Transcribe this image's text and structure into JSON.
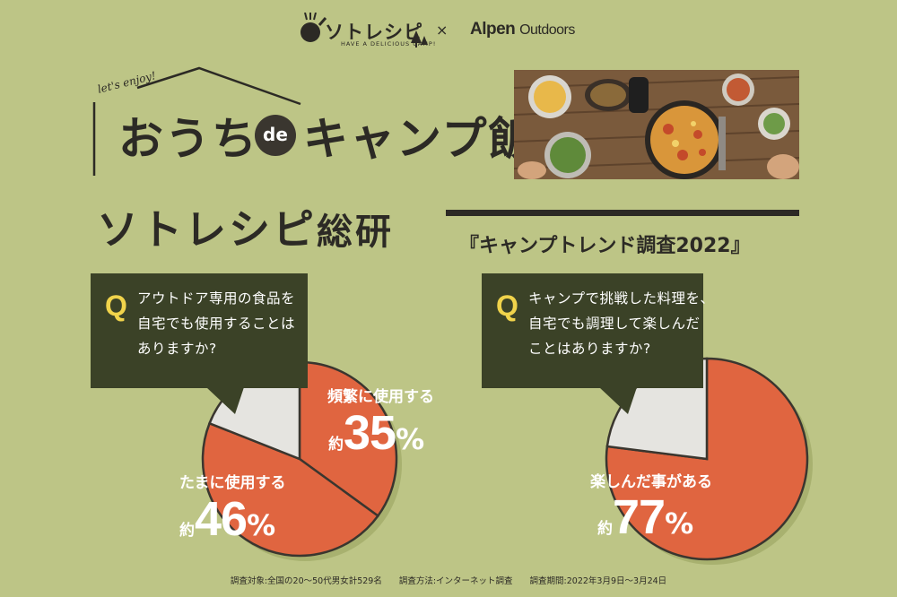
{
  "header": {
    "brand_sotorecipe": "ソトレシピ",
    "brand_tagline": "HAVE A DELICIOUS CAMP!",
    "times": "×",
    "brand_alpen": "Alpen",
    "brand_outdoors": "Outdoors"
  },
  "title": {
    "enjoy": "let's enjoy!",
    "part_a": "おうち",
    "de": "de",
    "part_b": "キャンプ飯",
    "soken_a": "ソトレシピ",
    "soken_b": "総研",
    "survey_name": "『キャンプトレンド調査2022』"
  },
  "questions": [
    {
      "mark": "Q",
      "lines": [
        "アウトドア専用の食品を",
        "自宅でも使用することは",
        "ありますか?"
      ]
    },
    {
      "mark": "Q",
      "lines": [
        "キャンプで挑戦した料理を、",
        "自宅でも調理して楽しんだ",
        "ことはありますか?"
      ]
    }
  ],
  "chart_data": [
    {
      "type": "pie",
      "slices": [
        {
          "label": "頻繁に使用する",
          "value": 35,
          "approx": "約",
          "display": "35",
          "unit": "%"
        },
        {
          "label": "たまに使用する",
          "value": 46,
          "approx": "約",
          "display": "46",
          "unit": "%"
        },
        {
          "label": "",
          "value": 19
        }
      ],
      "colors": {
        "main": "#e06540",
        "rest": "#e5e4e0"
      }
    },
    {
      "type": "pie",
      "slices": [
        {
          "label": "楽しんだ事がある",
          "value": 77,
          "approx": "約",
          "display": "77",
          "unit": "%"
        },
        {
          "label": "",
          "value": 23
        }
      ],
      "colors": {
        "main": "#e06540",
        "rest": "#e5e4e0"
      }
    }
  ],
  "footer": "調査対象:全国の20〜50代男女計529名　　調査方法:インターネット調査　　調査期間:2022年3月9日〜3月24日"
}
